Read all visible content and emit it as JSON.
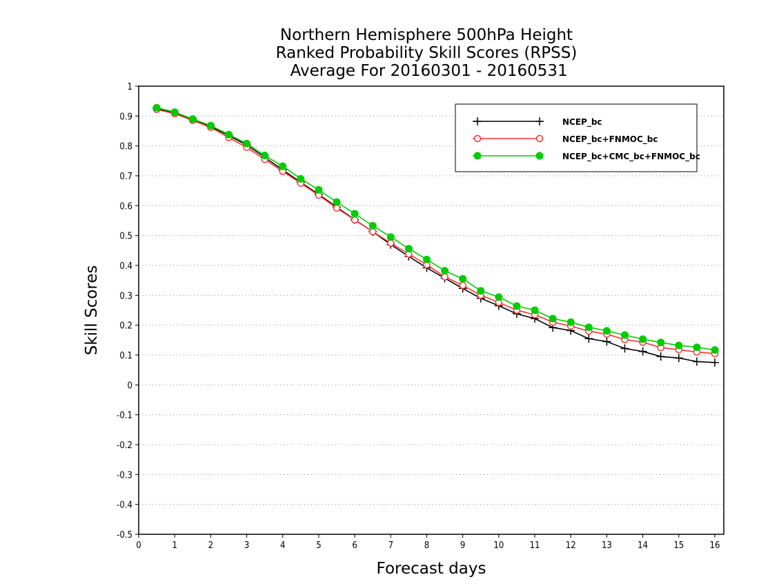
{
  "chart_data": {
    "type": "line",
    "title_lines": [
      "Northern Hemisphere 500hPa Height",
      "Ranked Probability Skill Scores (RPSS)",
      " Average For 20160301 - 20160531"
    ],
    "xlabel": "Forecast days",
    "ylabel": "Skill Scores",
    "xlim": [
      0,
      16.25
    ],
    "ylim": [
      -0.5,
      1
    ],
    "xticks": [
      0,
      1,
      2,
      3,
      4,
      5,
      6,
      7,
      8,
      9,
      10,
      11,
      12,
      13,
      14,
      15,
      16
    ],
    "yticks": [
      -0.5,
      -0.4,
      -0.3,
      -0.2,
      -0.1,
      0,
      0.1,
      0.2,
      0.3,
      0.4,
      0.5,
      0.6,
      0.7,
      0.8,
      0.9,
      1
    ],
    "grid": "horizontal dotted",
    "legend_position": "top-right",
    "x": [
      0.5,
      1,
      1.5,
      2,
      2.5,
      3,
      3.5,
      4,
      4.5,
      5,
      5.5,
      6,
      6.5,
      7,
      7.5,
      8,
      8.5,
      9,
      9.5,
      10,
      10.5,
      11,
      11.5,
      12,
      12.5,
      13,
      13.5,
      14,
      14.5,
      15,
      15.5,
      16
    ],
    "series": [
      {
        "name": "NCEP_bc",
        "color": "#000000",
        "marker": "plus",
        "values": [
          0.925,
          0.91,
          0.888,
          0.865,
          0.835,
          0.803,
          0.762,
          0.72,
          0.678,
          0.638,
          0.595,
          0.553,
          0.513,
          0.47,
          0.43,
          0.392,
          0.357,
          0.323,
          0.29,
          0.265,
          0.238,
          0.222,
          0.192,
          0.182,
          0.155,
          0.145,
          0.122,
          0.112,
          0.095,
          0.09,
          0.078,
          0.075
        ]
      },
      {
        "name": "NCEP_bc+FNMOC_bc",
        "color": "#ff3030",
        "marker": "open-circle",
        "values": [
          0.922,
          0.908,
          0.885,
          0.862,
          0.828,
          0.795,
          0.755,
          0.715,
          0.675,
          0.635,
          0.592,
          0.552,
          0.513,
          0.475,
          0.438,
          0.402,
          0.362,
          0.333,
          0.3,
          0.276,
          0.25,
          0.235,
          0.21,
          0.197,
          0.18,
          0.17,
          0.152,
          0.143,
          0.125,
          0.118,
          0.11,
          0.105
        ]
      },
      {
        "name": "NCEP_bc+CMC_bc+FNMOC_bc",
        "color": "#00cc00",
        "marker": "filled-circle",
        "values": [
          0.928,
          0.913,
          0.89,
          0.868,
          0.838,
          0.808,
          0.768,
          0.732,
          0.69,
          0.653,
          0.612,
          0.573,
          0.533,
          0.495,
          0.456,
          0.42,
          0.382,
          0.355,
          0.315,
          0.294,
          0.264,
          0.25,
          0.222,
          0.21,
          0.193,
          0.181,
          0.167,
          0.153,
          0.142,
          0.132,
          0.126,
          0.117
        ]
      }
    ]
  }
}
